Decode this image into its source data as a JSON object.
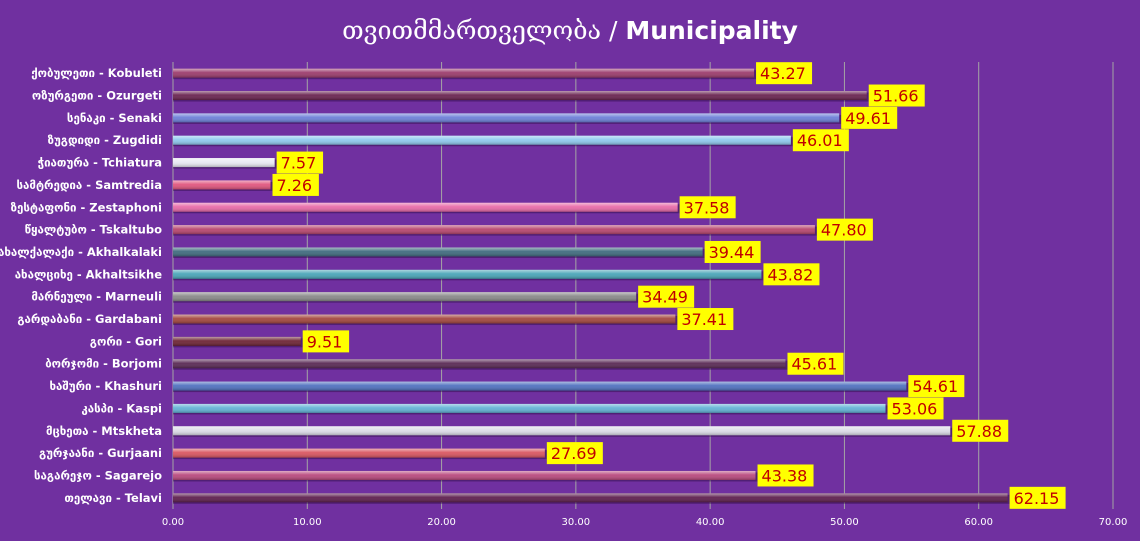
{
  "chart_data": {
    "type": "bar",
    "orientation": "horizontal",
    "title_geo": "თვითმმართველობა",
    "title_sep": " / ",
    "title_en": "Municipality",
    "xlim": [
      0,
      70
    ],
    "xticks": [
      "0.00",
      "10.00",
      "20.00",
      "30.00",
      "40.00",
      "50.00",
      "60.00",
      "70.00"
    ],
    "xtick_values": [
      0,
      10,
      20,
      30,
      40,
      50,
      60,
      70
    ],
    "grid": true,
    "categories": [
      "ქობულეთი - Kobuleti",
      "ოზურგეთი - Ozurgeti",
      "სენაკი - Senaki",
      "ზუგდიდი - Zugdidi",
      "ჭიათურა - Tchiatura",
      "სამტრედია - Samtredia",
      "ზესტაფონი - Zestaphoni",
      "წყალტუბო - Tskaltubo",
      "ახალქალაქი - Akhalkalaki",
      "ახალციხე - Akhaltsikhe",
      "მარნეული - Marneuli",
      "გარდაბანი - Gardabani",
      "გორი - Gori",
      "ბორჯომი - Borjomi",
      "ხაშური - Khashuri",
      "კასპი - Kaspi",
      "მცხეთა - Mtskheta",
      "გურჯაანი - Gurjaani",
      "საგარეჯო - Sagarejo",
      "თელავი - Telavi"
    ],
    "values": [
      43.27,
      51.66,
      49.61,
      46.01,
      7.57,
      7.26,
      37.58,
      47.8,
      39.44,
      43.82,
      34.49,
      37.41,
      9.51,
      45.61,
      54.61,
      53.06,
      57.88,
      27.69,
      43.38,
      62.15
    ],
    "value_labels": [
      "43.27",
      "51.66",
      "49.61",
      "46.01",
      "7.57",
      "7.26",
      "37.58",
      "47.80",
      "39.44",
      "43.82",
      "34.49",
      "37.41",
      "9.51",
      "45.61",
      "54.61",
      "53.06",
      "57.88",
      "27.69",
      "43.38",
      "62.15"
    ],
    "bar_colors": [
      "#9b3b6c",
      "#6a2451",
      "#6d7fd8",
      "#8fc9ee",
      "#e8e8f2",
      "#e0567e",
      "#e86aa8",
      "#b8466e",
      "#3f6b7e",
      "#4aa5b8",
      "#8a8a8a",
      "#a3463e",
      "#6e2435",
      "#5a2a55",
      "#5071bf",
      "#63b3d6",
      "#dcdce8",
      "#d85560",
      "#b94a7e",
      "#5e1f4e"
    ],
    "label_bg": "#ffff00",
    "label_color": "#c00000",
    "background": "#7030a0"
  }
}
